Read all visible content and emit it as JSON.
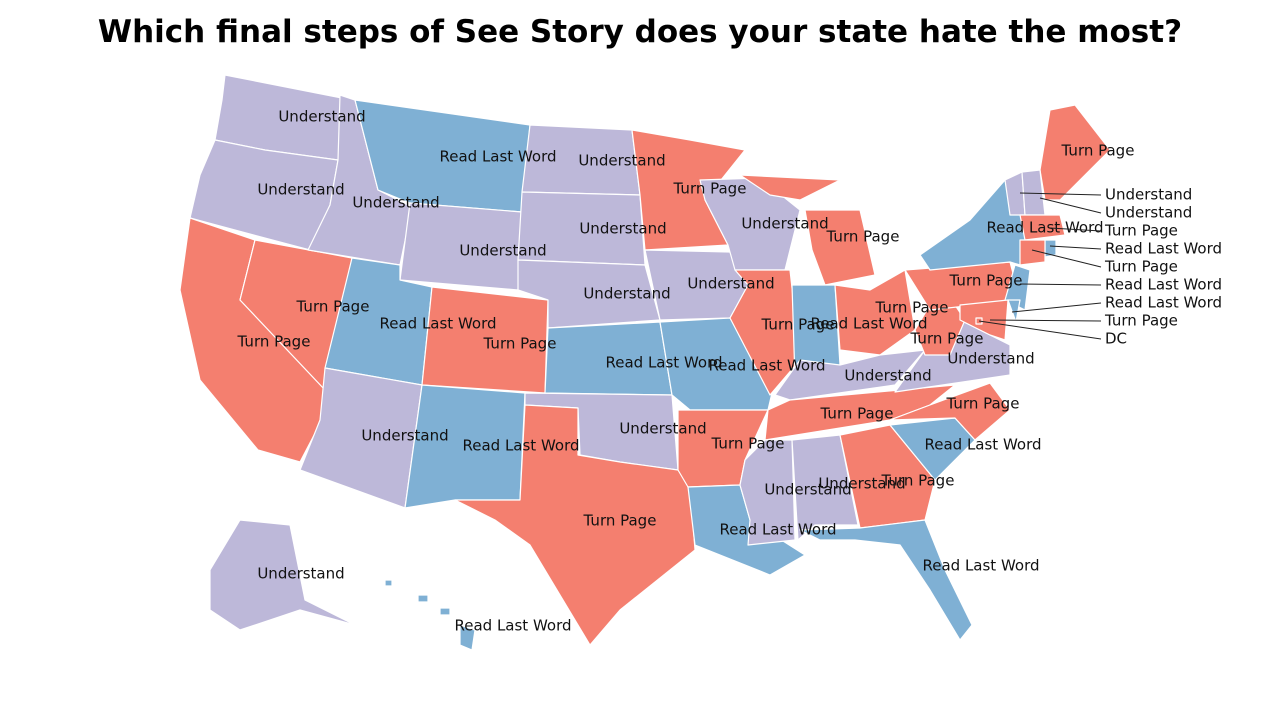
{
  "title": "Which final steps of See Story does your state hate the most?",
  "states": [
    {
      "label": "Understand",
      "color": "#bdb8d9"
    },
    {
      "label": "Understand",
      "color": "#bdb8d9"
    },
    {
      "label": "Turn Page",
      "color": "#f47f6f"
    },
    {
      "label": "Turn Page",
      "color": "#f47f6f"
    },
    {
      "label": "Understand",
      "color": "#bdb8d9"
    },
    {
      "label": "Read Last Word",
      "color": "#7fb0d4"
    },
    {
      "label": "Understand",
      "color": "#bdb8d9"
    },
    {
      "label": "Read Last Word",
      "color": "#7fb0d4"
    },
    {
      "label": "Understand",
      "color": "#bdb8d9"
    },
    {
      "label": "Turn Page",
      "color": "#f47f6f"
    },
    {
      "label": "Read Last Word",
      "color": "#7fb0d4"
    },
    {
      "label": "Understand",
      "color": "#bdb8d9"
    },
    {
      "label": "Understand",
      "color": "#bdb8d9"
    },
    {
      "label": "Understand",
      "color": "#bdb8d9"
    },
    {
      "label": "Read Last Word",
      "color": "#7fb0d4"
    },
    {
      "label": "Understand",
      "color": "#bdb8d9"
    },
    {
      "label": "Turn Page",
      "color": "#f47f6f"
    },
    {
      "label": "Turn Page",
      "color": "#f47f6f"
    },
    {
      "label": "Understand",
      "color": "#bdb8d9"
    },
    {
      "label": "Read Last Word",
      "color": "#7fb0d4"
    },
    {
      "label": "Turn Page",
      "color": "#f47f6f"
    },
    {
      "label": "Read Last Word",
      "color": "#7fb0d4"
    },
    {
      "label": "Understand",
      "color": "#bdb8d9"
    },
    {
      "label": "Turn Page",
      "color": "#f47f6f"
    },
    {
      "label": "Turn Page",
      "color": "#f47f6f"
    },
    {
      "label": "Read Last Word",
      "color": "#7fb0d4"
    },
    {
      "label": "Turn Page",
      "color": "#f47f6f"
    },
    {
      "label": "Understand",
      "color": "#bdb8d9"
    },
    {
      "label": "Turn Page",
      "color": "#f47f6f"
    },
    {
      "label": "Understand",
      "color": "#bdb8d9"
    },
    {
      "label": "Understand",
      "color": "#bdb8d9"
    },
    {
      "label": "Turn Page",
      "color": "#f47f6f"
    },
    {
      "label": "Read Last Word",
      "color": "#7fb0d4"
    },
    {
      "label": "Read Last Word",
      "color": "#7fb0d4"
    },
    {
      "label": "Turn Page",
      "color": "#f47f6f"
    },
    {
      "label": "Understand",
      "color": "#bdb8d9"
    },
    {
      "label": "Turn Page",
      "color": "#f47f6f"
    },
    {
      "label": "Turn Page",
      "color": "#f47f6f"
    },
    {
      "label": "Read Last Word",
      "color": "#7fb0d4"
    },
    {
      "label": "Turn Page",
      "color": "#f47f6f"
    },
    {
      "label": "Understand",
      "color": "#bdb8d9"
    },
    {
      "label": "Read Last Word",
      "color": "#7fb0d4"
    },
    {
      "label": "Understand",
      "color": "#bdb8d9"
    },
    {
      "label": "Understand",
      "color": "#bdb8d9"
    },
    {
      "label": "Turn Page",
      "color": "#f47f6f"
    },
    {
      "label": "Read Last Word",
      "color": "#7fb0d4"
    },
    {
      "label": "Turn Page",
      "color": "#f47f6f"
    },
    {
      "label": "Read Last Word",
      "color": "#7fb0d4"
    },
    {
      "label": "Read Last Word",
      "color": "#7fb0d4"
    },
    {
      "label": "Turn Page",
      "color": "#f47f6f"
    },
    {
      "label": "DC",
      "color": "#f47f6f"
    }
  ]
}
